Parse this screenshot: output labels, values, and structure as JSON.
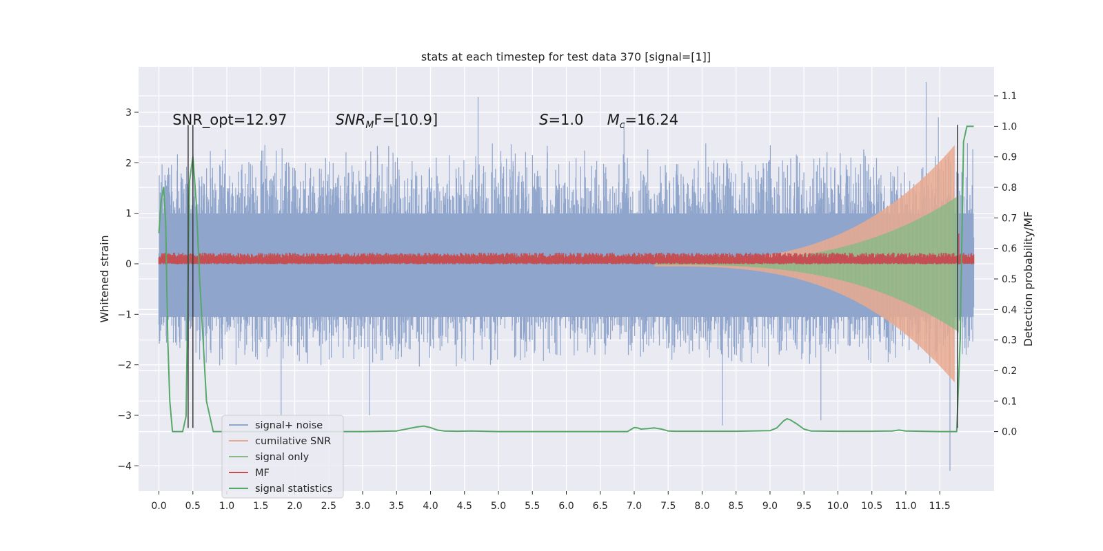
{
  "chart_data": {
    "type": "line",
    "title": "stats at each timestep for test data 370 [signal=[1]]",
    "xlabel": "",
    "ylabel": "Whitened strain",
    "y2label": "Detection probability/MF",
    "xlim": [
      -0.3,
      12.3
    ],
    "ylim": [
      -4.5,
      3.9
    ],
    "y2lim": [
      -0.195,
      1.195
    ],
    "x_ticks": [
      "0.0",
      "0.5",
      "1.0",
      "1.5",
      "2.0",
      "2.5",
      "3.0",
      "3.5",
      "4.0",
      "4.5",
      "5.0",
      "5.5",
      "6.0",
      "6.5",
      "7.0",
      "7.5",
      "8.0",
      "8.5",
      "9.0",
      "9.5",
      "10.0",
      "10.5",
      "11.0",
      "11.5"
    ],
    "y_ticks": [
      -4,
      -3,
      -2,
      -1,
      0,
      1,
      2,
      3
    ],
    "y2_ticks": [
      "0.0",
      "0.1",
      "0.2",
      "0.3",
      "0.4",
      "0.5",
      "0.6",
      "0.7",
      "0.8",
      "0.9",
      "1.0",
      "1.1"
    ],
    "grid": true,
    "legend_position": "lower-left",
    "annotations": [
      {
        "id": "snr_opt",
        "text": "SNR_opt=12.97",
        "x": 0.2
      },
      {
        "id": "snr_mf",
        "text_main": "SNR",
        "text_sub": "M",
        "text_rest": "F=[10.9]",
        "x": 2.6
      },
      {
        "id": "s",
        "text_main": "S",
        "text_rest": "=1.0",
        "x": 5.6
      },
      {
        "id": "mc",
        "text_main": "M",
        "text_sub": "c",
        "text_rest": "=16.24",
        "x": 6.6
      }
    ],
    "annotation_y": 2.85,
    "series": [
      {
        "name": "signal+ noise",
        "color": "#8fa5cc",
        "kind": "noise",
        "x_range": [
          0.0,
          12.0
        ],
        "envelope_lower": -2.1,
        "envelope_upper": 2.4,
        "peaks": [
          {
            "x": 4.7,
            "y": 3.3
          },
          {
            "x": 11.3,
            "y": 3.6
          },
          {
            "x": 11.48,
            "y": 2.9
          },
          {
            "x": 6.85,
            "y": 2.8
          },
          {
            "x": 8.3,
            "y": -3.2
          },
          {
            "x": 11.65,
            "y": -4.1
          },
          {
            "x": 1.8,
            "y": -3.0
          },
          {
            "x": 3.1,
            "y": -3.0
          },
          {
            "x": 9.75,
            "y": -3.1
          }
        ]
      },
      {
        "name": "cumilative SNR",
        "color": "#e9a98f",
        "kind": "chirp",
        "x_range": [
          7.3,
          11.72
        ],
        "amp_start": 0.05,
        "amp_end": 2.35
      },
      {
        "name": "signal only",
        "color": "#8cb887",
        "kind": "chirp",
        "x_range": [
          7.3,
          11.78
        ],
        "amp_start": 0.02,
        "amp_end": 1.35
      },
      {
        "name": "MF",
        "color": "#c44e52",
        "kind": "band",
        "x_range": [
          0.0,
          12.0
        ],
        "band_lower": 0.02,
        "band_upper": 0.22,
        "spike": {
          "x": 11.78,
          "y": 0.6
        }
      },
      {
        "name": "signal statistics",
        "color": "#55a868",
        "kind": "line",
        "x": [
          0.0,
          0.03,
          0.07,
          0.1,
          0.13,
          0.16,
          0.2,
          0.25,
          0.3,
          0.35,
          0.4,
          0.45,
          0.5,
          0.55,
          0.6,
          0.65,
          0.7,
          0.8,
          1.0,
          2.0,
          3.0,
          3.5,
          3.8,
          3.9,
          4.0,
          4.1,
          4.2,
          4.4,
          4.6,
          5.0,
          6.0,
          6.9,
          7.0,
          7.05,
          7.1,
          7.2,
          7.3,
          7.4,
          7.5,
          7.6,
          8.0,
          8.5,
          9.0,
          9.1,
          9.2,
          9.25,
          9.3,
          9.4,
          9.5,
          9.6,
          10.0,
          10.5,
          10.8,
          10.9,
          11.0,
          11.5,
          11.75,
          11.8,
          11.85,
          11.9,
          11.95,
          12.0
        ],
        "y2": [
          0.65,
          0.75,
          0.8,
          0.68,
          0.3,
          0.1,
          0.0,
          0.0,
          0.0,
          0.0,
          0.05,
          0.82,
          0.9,
          0.75,
          0.5,
          0.3,
          0.1,
          0.0,
          0.0,
          0.0,
          0.0,
          0.002,
          0.015,
          0.018,
          0.013,
          0.005,
          0.002,
          0.001,
          0.002,
          0.0,
          0.0,
          0.0,
          0.013,
          0.012,
          0.008,
          0.01,
          0.012,
          0.008,
          0.002,
          0.001,
          0.001,
          0.001,
          0.003,
          0.012,
          0.035,
          0.042,
          0.038,
          0.024,
          0.008,
          0.002,
          0.001,
          0.001,
          0.002,
          0.005,
          0.002,
          0.0,
          0.0,
          0.3,
          0.95,
          1.0,
          1.0,
          1.0
        ]
      }
    ],
    "vertical_markers": [
      {
        "x": 0.43,
        "y_from": -3.25,
        "y_to": 2.75,
        "color": "#3a3a3a"
      },
      {
        "x": 0.5,
        "y_from": -3.25,
        "y_to": 2.75,
        "color": "#3a3a3a"
      },
      {
        "x": 11.76,
        "y_from": -3.25,
        "y_to": 2.75,
        "color": "#3a3a3a"
      }
    ]
  },
  "style": {
    "plot_background": "#eaeaf2",
    "grid_color": "#ffffff",
    "page_background": "#ffffff"
  }
}
